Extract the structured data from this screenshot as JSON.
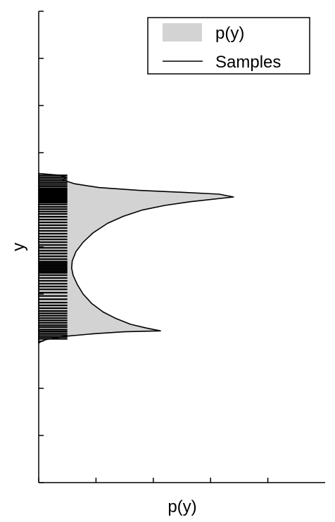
{
  "chart_data": {
    "type": "area",
    "orientation": "horizontal",
    "xlabel": "p(y)",
    "ylabel": "y",
    "xlim": [
      0,
      1
    ],
    "ylim": [
      0,
      1
    ],
    "grid": false,
    "legend_position": "top-right",
    "x_ticks": [
      0,
      0.2,
      0.4,
      0.6,
      0.8
    ],
    "y_ticks": [
      0,
      0.1,
      0.2,
      0.3,
      0.4,
      0.5,
      0.6,
      0.7,
      0.8,
      0.9,
      1.0
    ],
    "series": [
      {
        "name": "p(y)",
        "kind": "density",
        "color": "#d3d3d3",
        "points": [
          {
            "y": 0.296,
            "x": 0.0
          },
          {
            "y": 0.3,
            "x": 0.01
          },
          {
            "y": 0.304,
            "x": 0.03
          },
          {
            "y": 0.31,
            "x": 0.085
          },
          {
            "y": 0.316,
            "x": 0.195
          },
          {
            "y": 0.32,
            "x": 0.3
          },
          {
            "y": 0.322,
            "x": 0.425
          },
          {
            "y": 0.328,
            "x": 0.375
          },
          {
            "y": 0.336,
            "x": 0.32
          },
          {
            "y": 0.348,
            "x": 0.27
          },
          {
            "y": 0.362,
            "x": 0.225
          },
          {
            "y": 0.38,
            "x": 0.185
          },
          {
            "y": 0.4,
            "x": 0.155
          },
          {
            "y": 0.42,
            "x": 0.135
          },
          {
            "y": 0.44,
            "x": 0.12
          },
          {
            "y": 0.455,
            "x": 0.115
          },
          {
            "y": 0.47,
            "x": 0.117
          },
          {
            "y": 0.49,
            "x": 0.13
          },
          {
            "y": 0.51,
            "x": 0.155
          },
          {
            "y": 0.53,
            "x": 0.19
          },
          {
            "y": 0.55,
            "x": 0.24
          },
          {
            "y": 0.565,
            "x": 0.295
          },
          {
            "y": 0.578,
            "x": 0.36
          },
          {
            "y": 0.588,
            "x": 0.44
          },
          {
            "y": 0.596,
            "x": 0.53
          },
          {
            "y": 0.606,
            "x": 0.68
          },
          {
            "y": 0.612,
            "x": 0.63
          },
          {
            "y": 0.616,
            "x": 0.5
          },
          {
            "y": 0.62,
            "x": 0.35
          },
          {
            "y": 0.626,
            "x": 0.21
          },
          {
            "y": 0.634,
            "x": 0.125
          },
          {
            "y": 0.642,
            "x": 0.085
          },
          {
            "y": 0.648,
            "x": 0.095
          },
          {
            "y": 0.652,
            "x": 0.075
          },
          {
            "y": 0.656,
            "x": 0.0
          }
        ]
      },
      {
        "name": "Samples",
        "kind": "rug",
        "color": "#000000",
        "rug_length_x": 0.1,
        "y_values": [
          0.305,
          0.309,
          0.313,
          0.317,
          0.321,
          0.325,
          0.33,
          0.334,
          0.339,
          0.344,
          0.349,
          0.354,
          0.359,
          0.364,
          0.37,
          0.376,
          0.382,
          0.389,
          0.396,
          0.403,
          0.41,
          0.416,
          0.422,
          0.428,
          0.434,
          0.44,
          0.445,
          0.448,
          0.451,
          0.454,
          0.457,
          0.46,
          0.463,
          0.466,
          0.469,
          0.474,
          0.48,
          0.486,
          0.492,
          0.498,
          0.504,
          0.51,
          0.516,
          0.522,
          0.528,
          0.534,
          0.54,
          0.546,
          0.552,
          0.558,
          0.564,
          0.57,
          0.575,
          0.58,
          0.585,
          0.59,
          0.594,
          0.597,
          0.6,
          0.603,
          0.606,
          0.609,
          0.612,
          0.615,
          0.618,
          0.621,
          0.624,
          0.628,
          0.632,
          0.636,
          0.64,
          0.644,
          0.648,
          0.652
        ]
      }
    ]
  }
}
